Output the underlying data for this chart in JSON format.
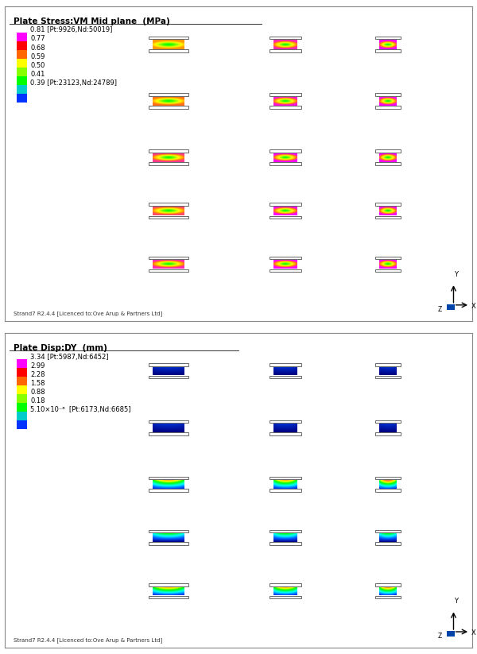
{
  "top_panel": {
    "title": "Plate Stress:VM Mid plane  (MPa)",
    "max_label": "0.81 [Pt:9926,Nd:50019]",
    "legend_values": [
      "0.77",
      "0.68",
      "0.59",
      "0.50",
      "0.41"
    ],
    "min_label": "0.39 [Pt:23123,Nd:24789]",
    "colorbar_colors": [
      "#ff00ff",
      "#ff0000",
      "#ff8800",
      "#ffff00",
      "#88ff00",
      "#00ff00",
      "#00ccff",
      "#0000ff"
    ],
    "grid_rows": 5,
    "grid_cols": 3,
    "footer": "Strand7 R2.4.4 [Licenced to:Ove Arup & Partners Ltd]"
  },
  "bottom_panel": {
    "title": "Plate Disp:DY  (mm)",
    "max_label": "3.34 [Pt:5987,Nd:6452]",
    "legend_values": [
      "2.99",
      "2.28",
      "1.58",
      "0.88",
      "0.18"
    ],
    "min_label": "5.10×10⁻⁶  [Pt:6173,Nd:6685]",
    "colorbar_colors": [
      "#ff00ff",
      "#ff0000",
      "#ff8800",
      "#ffff00",
      "#88ff00",
      "#00ff00",
      "#00ccff",
      "#0000ff"
    ],
    "grid_rows": 5,
    "grid_cols": 3,
    "footer": "Strand7 R2.4.4 [Licenced to:Ove Arup & Partners Ltd]"
  },
  "bg_color": "#ffffff",
  "panel_bg": "#f8f8f8",
  "border_color": "#cccccc"
}
